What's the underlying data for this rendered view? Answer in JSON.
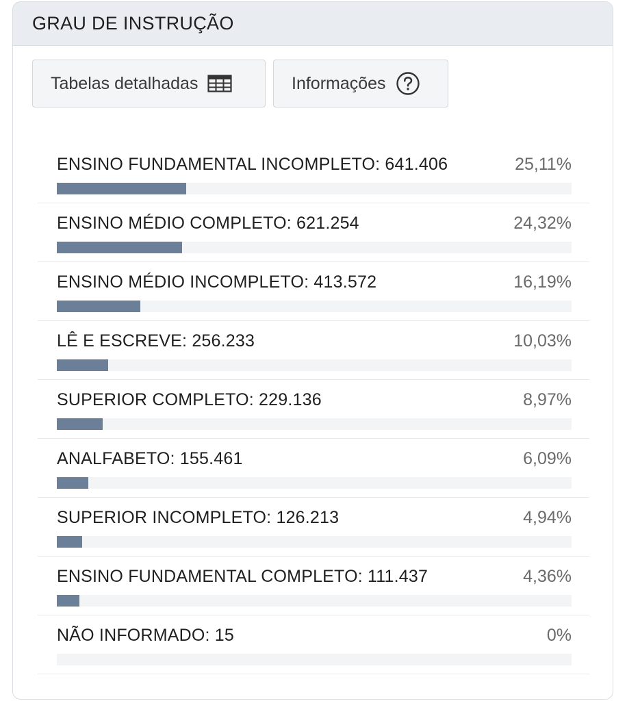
{
  "header": {
    "title": "GRAU DE INSTRUÇÃO"
  },
  "toolbar": {
    "tables_label": "Tabelas detalhadas",
    "tables_icon": "table-icon",
    "info_label": "Informações",
    "info_icon": "question-circle-icon"
  },
  "colors": {
    "bar": "#6c7f99",
    "track": "#f3f4f6",
    "header_bg": "#e9edf1"
  },
  "rows": [
    {
      "label": "ENSINO FUNDAMENTAL INCOMPLETO: 641.406",
      "pct": "25,11%",
      "share": 0.2511
    },
    {
      "label": "ENSINO MÉDIO COMPLETO: 621.254",
      "pct": "24,32%",
      "share": 0.2432
    },
    {
      "label": "ENSINO MÉDIO INCOMPLETO: 413.572",
      "pct": "16,19%",
      "share": 0.1619
    },
    {
      "label": "LÊ E ESCREVE: 256.233",
      "pct": "10,03%",
      "share": 0.1003
    },
    {
      "label": "SUPERIOR COMPLETO: 229.136",
      "pct": "8,97%",
      "share": 0.0897
    },
    {
      "label": "ANALFABETO: 155.461",
      "pct": "6,09%",
      "share": 0.0609
    },
    {
      "label": "SUPERIOR INCOMPLETO: 126.213",
      "pct": "4,94%",
      "share": 0.0494
    },
    {
      "label": "ENSINO FUNDAMENTAL COMPLETO: 111.437",
      "pct": "4,36%",
      "share": 0.0436
    },
    {
      "label": "NÃO INFORMADO: 15",
      "pct": "0%",
      "share": 0
    }
  ]
}
